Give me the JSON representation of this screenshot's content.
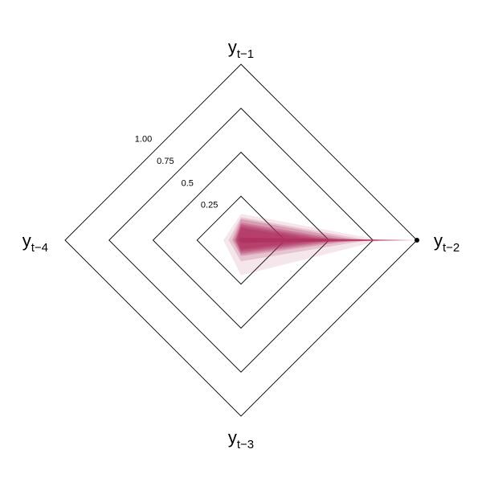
{
  "chart_data": {
    "type": "radar",
    "axes": [
      {
        "base": "y",
        "sub": "t−1"
      },
      {
        "base": "y",
        "sub": "t−2"
      },
      {
        "base": "y",
        "sub": "t−3"
      },
      {
        "base": "y",
        "sub": "t−4"
      }
    ],
    "rings": [
      0.25,
      0.5,
      0.75,
      1.0
    ],
    "ring_labels": [
      "0.25",
      "0.5",
      "0.75",
      "1.00"
    ],
    "range": [
      0,
      1
    ],
    "fill_color": "#b0305f",
    "grid_color": "#000000",
    "highlight_point": {
      "axis": 2,
      "value": 1.0
    },
    "series": [
      {
        "values": [
          0.15,
          0.8,
          0.2,
          0.1
        ],
        "opacity": 0.12
      },
      {
        "values": [
          0.13,
          0.72,
          0.12,
          0.07
        ],
        "opacity": 0.2
      },
      {
        "values": [
          0.12,
          0.66,
          0.09,
          0.05
        ],
        "opacity": 0.25
      },
      {
        "values": [
          0.1,
          0.6,
          0.08,
          0.04
        ],
        "opacity": 0.3
      },
      {
        "values": [
          0.09,
          0.55,
          0.07,
          0.03
        ],
        "opacity": 0.35
      },
      {
        "values": [
          0.08,
          0.5,
          0.06,
          0.03
        ],
        "opacity": 0.4
      },
      {
        "values": [
          0.07,
          0.44,
          0.05,
          0.02
        ],
        "opacity": 0.45
      }
    ]
  }
}
